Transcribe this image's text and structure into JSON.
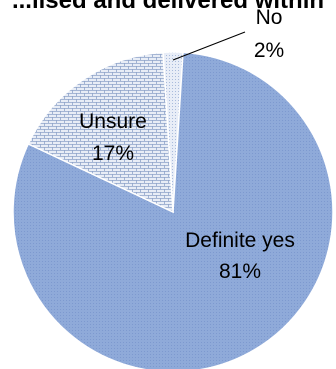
{
  "chart_data": {
    "type": "pie",
    "title": "...lised and delivered within",
    "slices": [
      {
        "label": "Definite yes",
        "value": 81,
        "value_label": "81%",
        "color": "#8faad9"
      },
      {
        "label": "Unsure",
        "value": 17,
        "value_label": "17%",
        "color": "#dfe5f1"
      },
      {
        "label": "No",
        "value": 2,
        "value_label": "2%",
        "color": "#e9eef7"
      }
    ],
    "start_category": "No",
    "direction": "clockwise-from-top-slightly-left",
    "legend": "none",
    "data_labels": "category-and-percent"
  }
}
